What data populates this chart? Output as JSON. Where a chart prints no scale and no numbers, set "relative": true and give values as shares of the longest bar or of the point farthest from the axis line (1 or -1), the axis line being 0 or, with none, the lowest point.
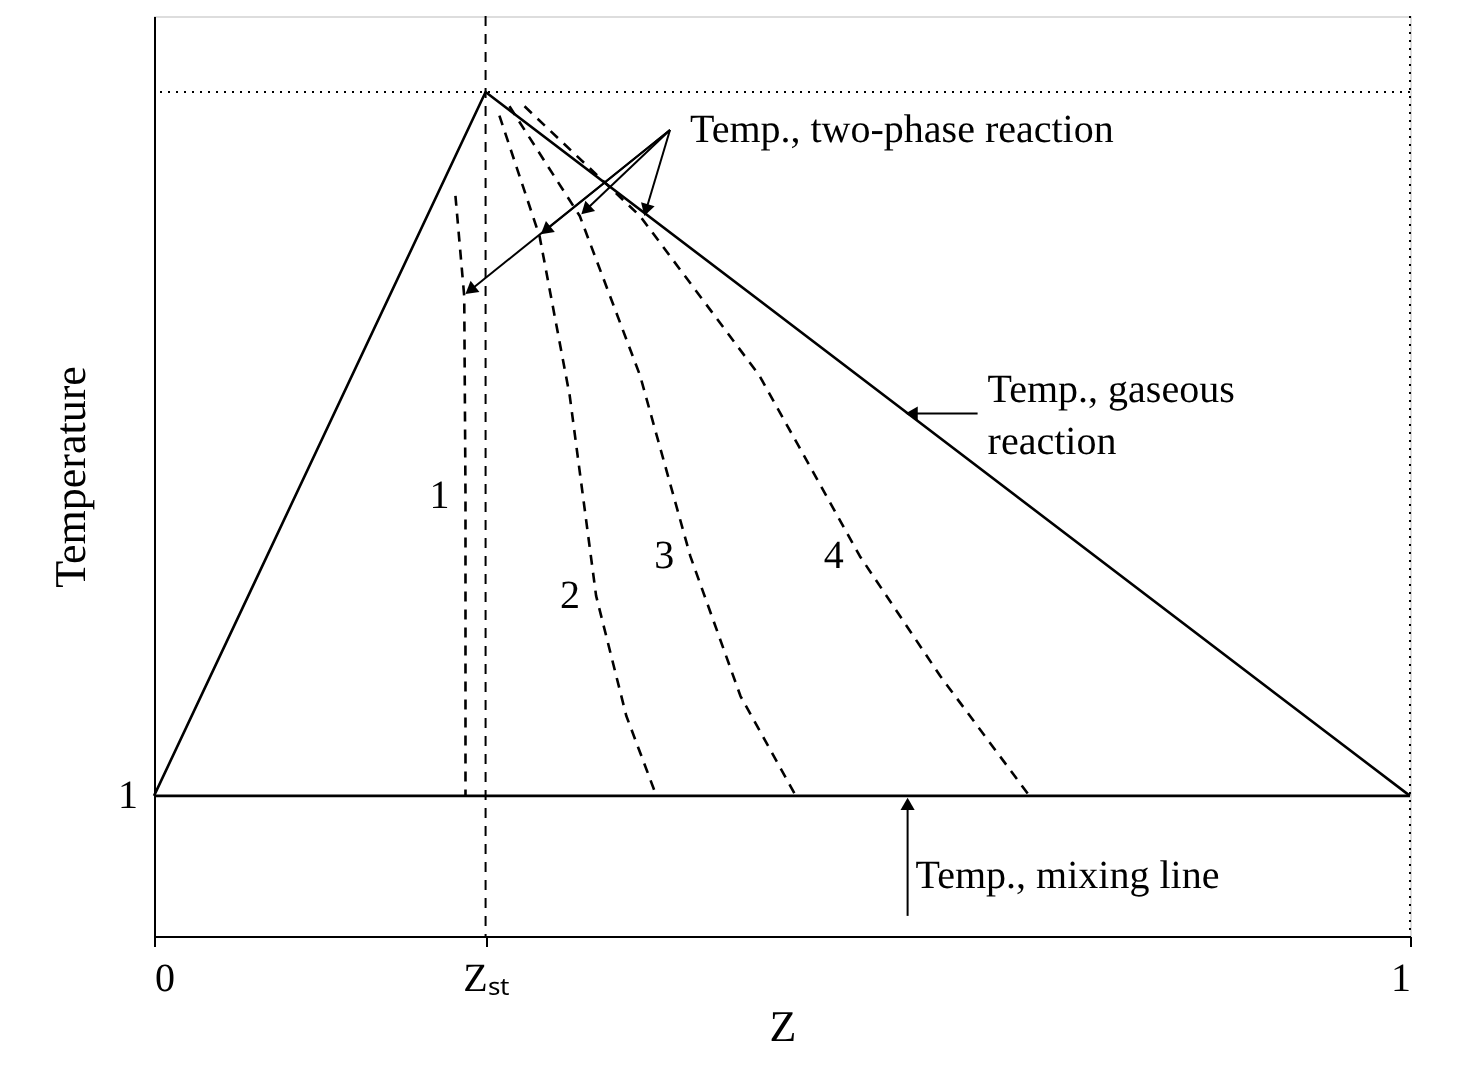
{
  "chart_data": {
    "type": "line",
    "relative": true,
    "xlabel": "Z",
    "ylabel": "Temperature",
    "xlim": [
      0,
      1
    ],
    "xticks": [
      0,
      {
        "value": 0.264,
        "label": "Zₛₜ"
      },
      1
    ],
    "grid": false,
    "marker": "none",
    "series": [
      {
        "name": null,
        "color": "#000000",
        "line_style": "solid",
        "x": [
          0,
          0.264,
          1
        ],
        "values": [
          0.166,
          1,
          0.166
        ]
      },
      {
        "name": null,
        "color": "#000000",
        "line_style": "solid",
        "x": [
          0,
          1
        ],
        "values": [
          0.166,
          0.166
        ]
      },
      {
        "name": "1",
        "color": "#000000",
        "line_style": "dashed",
        "x": [
          0.24,
          0.247,
          0.248,
          0.248
        ],
        "values": [
          0.877,
          0.758,
          0.521,
          0.166
        ]
      },
      {
        "name": "2",
        "color": "#000000",
        "line_style": "dashed",
        "x": [
          0.275,
          0.307,
          0.331,
          0.352,
          0.376,
          0.4
        ],
        "values": [
          0.972,
          0.829,
          0.64,
          0.403,
          0.261,
          0.166
        ]
      },
      {
        "name": "3",
        "color": "#000000",
        "line_style": "dashed",
        "x": [
          0.283,
          0.339,
          0.387,
          0.427,
          0.467,
          0.511
        ],
        "values": [
          0.983,
          0.853,
          0.664,
          0.45,
          0.284,
          0.166
        ]
      },
      {
        "name": "4",
        "color": "#000000",
        "line_style": "dashed",
        "x": [
          0.295,
          0.387,
          0.482,
          0.562,
          0.626,
          0.697
        ],
        "values": [
          0.983,
          0.853,
          0.664,
          0.45,
          0.308,
          0.166
        ]
      }
    ],
    "ref_lines": [
      {
        "axis": "x",
        "value": 0.264,
        "label": null,
        "line_style": "dashed",
        "color": "#000000"
      },
      {
        "axis": "x",
        "value": 1,
        "label": null,
        "line_style": "dotted",
        "color": "#000000"
      },
      {
        "axis": "y",
        "value": 1,
        "label": null,
        "line_style": "dotted",
        "color": "#000000"
      }
    ],
    "annotations": [
      "1",
      "Temp., two-phase reaction",
      {
        "text": "Temp., gaseous\nreaction",
        "x": 0.6,
        "y": 0.619
      },
      {
        "text": "Temp., mixing line",
        "x": 0.6,
        "y": 0.166
      }
    ]
  }
}
